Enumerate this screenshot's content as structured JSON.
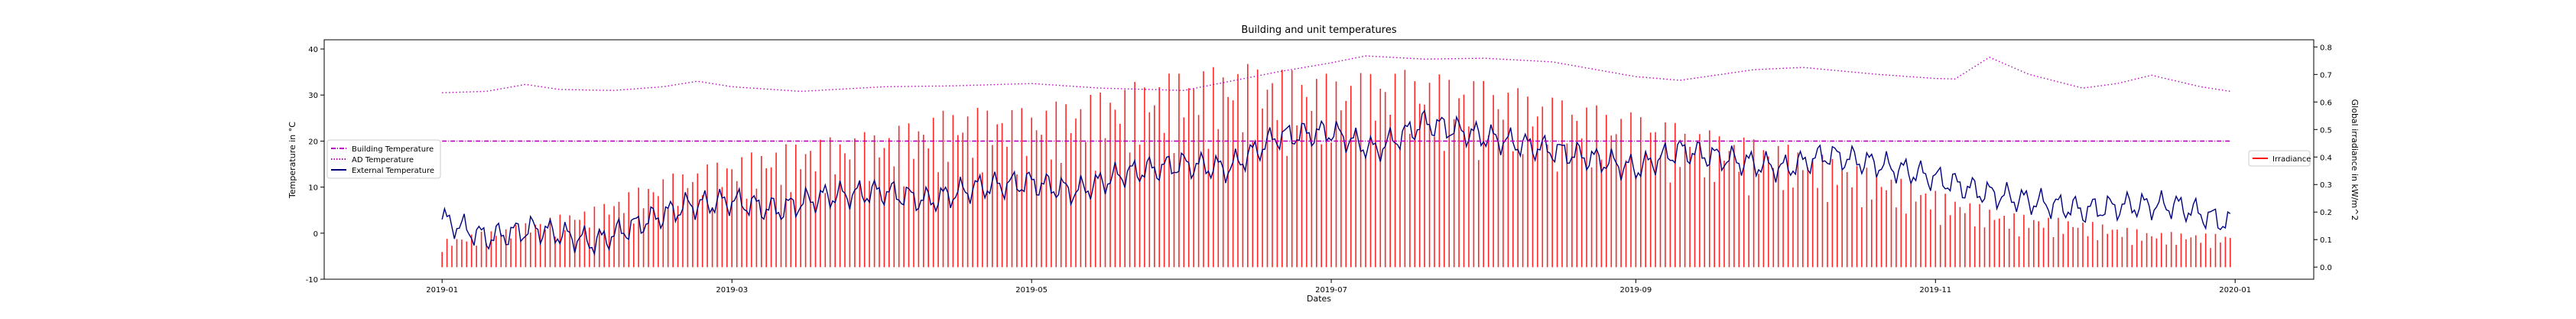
{
  "chart_data": {
    "type": "line",
    "title": "Building and unit temperatures",
    "xlabel": "Dates",
    "ylabel_left": "Temperature in °C",
    "ylabel_right": "Global irradiance in kW/m^2",
    "x_range": [
      "2018-12-08",
      "2020-01-17"
    ],
    "ylim_left": [
      -10,
      42
    ],
    "ylim_right": [
      -0.044,
      0.826
    ],
    "grid": false,
    "x_ticks": [
      "2019-01",
      "2019-03",
      "2019-05",
      "2019-07",
      "2019-09",
      "2019-11",
      "2020-01"
    ],
    "y_ticks_left": [
      -10,
      0,
      10,
      20,
      30,
      40
    ],
    "y_ticks_right": [
      "0.0",
      "0.1",
      "0.2",
      "0.3",
      "0.4",
      "0.5",
      "0.6",
      "0.7",
      "0.8"
    ],
    "legend_left_position": "center-left",
    "legend_right_position": "center-right",
    "series": [
      {
        "name": "Building Temperature",
        "axis": "left",
        "style": "dash-dot",
        "color": "#bf00bf",
        "x": [
          "2019-01-01",
          "2019-01-15",
          "2019-02-01",
          "2019-03-01",
          "2019-04-01",
          "2019-05-01",
          "2019-06-01",
          "2019-07-01",
          "2019-08-01",
          "2019-09-01",
          "2019-10-01",
          "2019-11-01",
          "2019-12-01",
          "2019-12-31"
        ],
        "y": [
          20,
          20,
          20,
          20,
          20,
          20,
          20,
          20,
          20,
          20,
          20,
          20,
          20,
          20
        ]
      },
      {
        "name": "AD Temperature",
        "axis": "left",
        "style": "dotted",
        "color": "#bf00bf",
        "x": [
          "2019-01-01",
          "2019-01-10",
          "2019-01-18",
          "2019-01-25",
          "2019-02-05",
          "2019-02-15",
          "2019-02-22",
          "2019-03-01",
          "2019-03-15",
          "2019-04-01",
          "2019-04-15",
          "2019-05-01",
          "2019-05-15",
          "2019-06-01",
          "2019-06-20",
          "2019-07-01",
          "2019-07-08",
          "2019-07-20",
          "2019-08-01",
          "2019-08-15",
          "2019-09-01",
          "2019-09-10",
          "2019-09-25",
          "2019-10-05",
          "2019-10-20",
          "2019-11-01",
          "2019-11-05",
          "2019-11-12",
          "2019-11-20",
          "2019-12-01",
          "2019-12-08",
          "2019-12-15",
          "2019-12-25",
          "2019-12-31"
        ],
        "y": [
          30.5,
          30.8,
          32.3,
          31.2,
          31.0,
          31.8,
          33.0,
          31.8,
          30.8,
          31.8,
          32.0,
          32.5,
          31.5,
          31.0,
          35.0,
          37.0,
          38.5,
          37.8,
          38.0,
          37.2,
          34.0,
          33.2,
          35.5,
          36.0,
          34.5,
          33.6,
          33.5,
          38.2,
          34.5,
          31.5,
          32.5,
          34.3,
          31.8,
          30.8
        ]
      },
      {
        "name": "External Temperature",
        "axis": "left",
        "style": "solid",
        "color": "#00007f",
        "x": [
          "2019-01-01",
          "2019-01-10",
          "2019-01-20",
          "2019-02-01",
          "2019-02-10",
          "2019-02-20",
          "2019-03-01",
          "2019-03-10",
          "2019-03-20",
          "2019-04-01",
          "2019-04-10",
          "2019-04-20",
          "2019-05-01",
          "2019-05-10",
          "2019-05-20",
          "2019-06-01",
          "2019-06-10",
          "2019-06-20",
          "2019-07-01",
          "2019-07-10",
          "2019-07-20",
          "2019-08-01",
          "2019-08-10",
          "2019-08-20",
          "2019-09-01",
          "2019-09-10",
          "2019-09-20",
          "2019-10-01",
          "2019-10-10",
          "2019-10-20",
          "2019-11-01",
          "2019-11-10",
          "2019-11-20",
          "2019-12-01",
          "2019-12-10",
          "2019-12-20",
          "2019-12-31"
        ],
        "y": [
          3,
          -1,
          1,
          -2,
          2,
          6,
          7,
          5,
          8,
          9,
          7,
          10,
          11,
          9,
          13,
          15,
          14,
          21,
          22,
          18,
          24,
          21,
          19,
          17,
          14,
          18,
          16,
          14,
          17,
          15,
          12,
          9,
          7,
          5,
          6,
          6,
          2
        ]
      },
      {
        "name": "Irradiance",
        "axis": "right",
        "style": "daily-spikes",
        "color": "#ff0000",
        "x": [
          "2019-01-01",
          "2019-01-15",
          "2019-02-01",
          "2019-02-15",
          "2019-03-01",
          "2019-03-15",
          "2019-04-01",
          "2019-04-15",
          "2019-05-01",
          "2019-05-15",
          "2019-06-01",
          "2019-06-15",
          "2019-07-01",
          "2019-07-15",
          "2019-08-01",
          "2019-08-15",
          "2019-09-01",
          "2019-09-15",
          "2019-10-01",
          "2019-10-15",
          "2019-11-01",
          "2019-11-15",
          "2019-12-01",
          "2019-12-15",
          "2019-12-31"
        ],
        "y": [
          0.1,
          0.15,
          0.22,
          0.33,
          0.4,
          0.46,
          0.5,
          0.58,
          0.58,
          0.64,
          0.72,
          0.74,
          0.7,
          0.72,
          0.68,
          0.62,
          0.56,
          0.5,
          0.45,
          0.38,
          0.28,
          0.2,
          0.17,
          0.13,
          0.12
        ]
      }
    ]
  }
}
